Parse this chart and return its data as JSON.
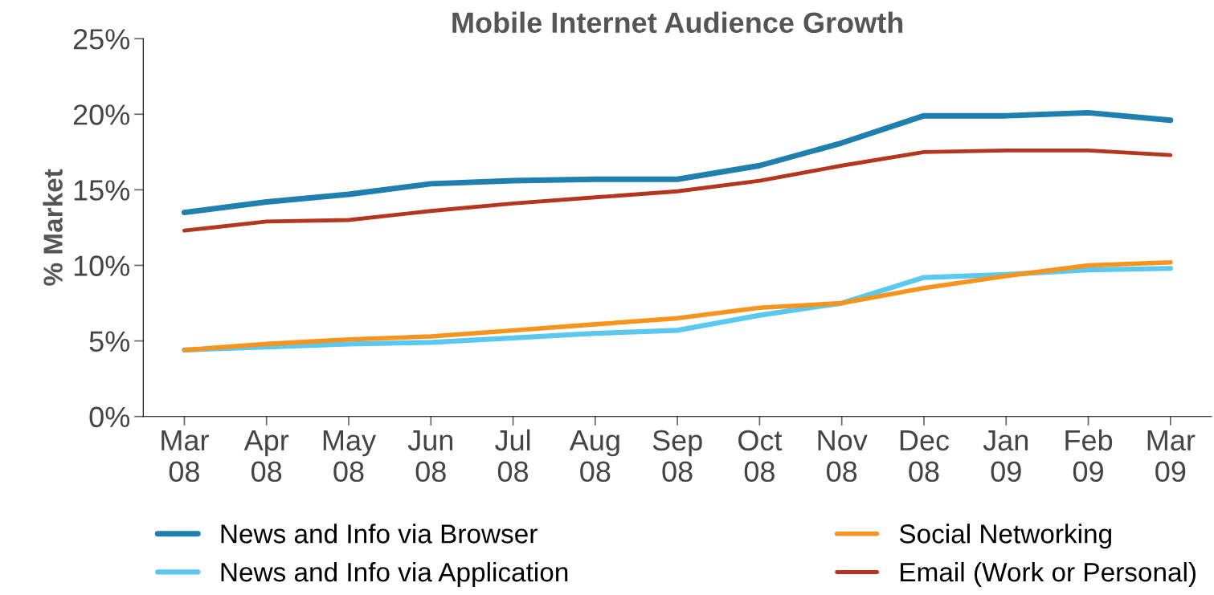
{
  "chart_data": {
    "type": "line",
    "title": "Mobile Internet Audience Growth",
    "ylabel": "% Market",
    "categories": [
      "Mar\n08",
      "Apr\n08",
      "May\n08",
      "Jun\n08",
      "Jul\n08",
      "Aug\n08",
      "Sep\n08",
      "Oct\n08",
      "Nov\n08",
      "Dec\n08",
      "Jan\n09",
      "Feb\n09",
      "Mar\n09"
    ],
    "series": [
      {
        "name": "News and Info via Browser",
        "color": "#1f7fae",
        "values": [
          13.5,
          14.2,
          14.7,
          15.4,
          15.6,
          15.7,
          15.7,
          16.6,
          18.1,
          19.9,
          19.9,
          20.1,
          19.6
        ]
      },
      {
        "name": "News and Info via Application",
        "color": "#5bc8f0",
        "values": [
          4.4,
          4.6,
          4.8,
          4.9,
          5.2,
          5.5,
          5.7,
          6.7,
          7.5,
          9.2,
          9.4,
          9.7,
          9.8
        ]
      },
      {
        "name": "Social Networking",
        "color": "#f7941d",
        "values": [
          4.4,
          4.8,
          5.1,
          5.3,
          5.7,
          6.1,
          6.5,
          7.2,
          7.5,
          8.5,
          9.3,
          10.0,
          10.2
        ]
      },
      {
        "name": "Email (Work or Personal)",
        "color": "#b5361f",
        "values": [
          12.3,
          12.9,
          13.0,
          13.6,
          14.1,
          14.5,
          14.9,
          15.6,
          16.6,
          17.5,
          17.6,
          17.6,
          17.3
        ]
      }
    ],
    "ylim": [
      0,
      25
    ],
    "yticks": [
      {
        "value": 0,
        "label": "0%"
      },
      {
        "value": 5,
        "label": "5%"
      },
      {
        "value": 10,
        "label": "10%"
      },
      {
        "value": 15,
        "label": "15%"
      },
      {
        "value": 20,
        "label": "20%"
      },
      {
        "value": 25,
        "label": "25%"
      }
    ],
    "grid": false,
    "legend": "bottom",
    "marker": "none",
    "line_style": "solid"
  }
}
